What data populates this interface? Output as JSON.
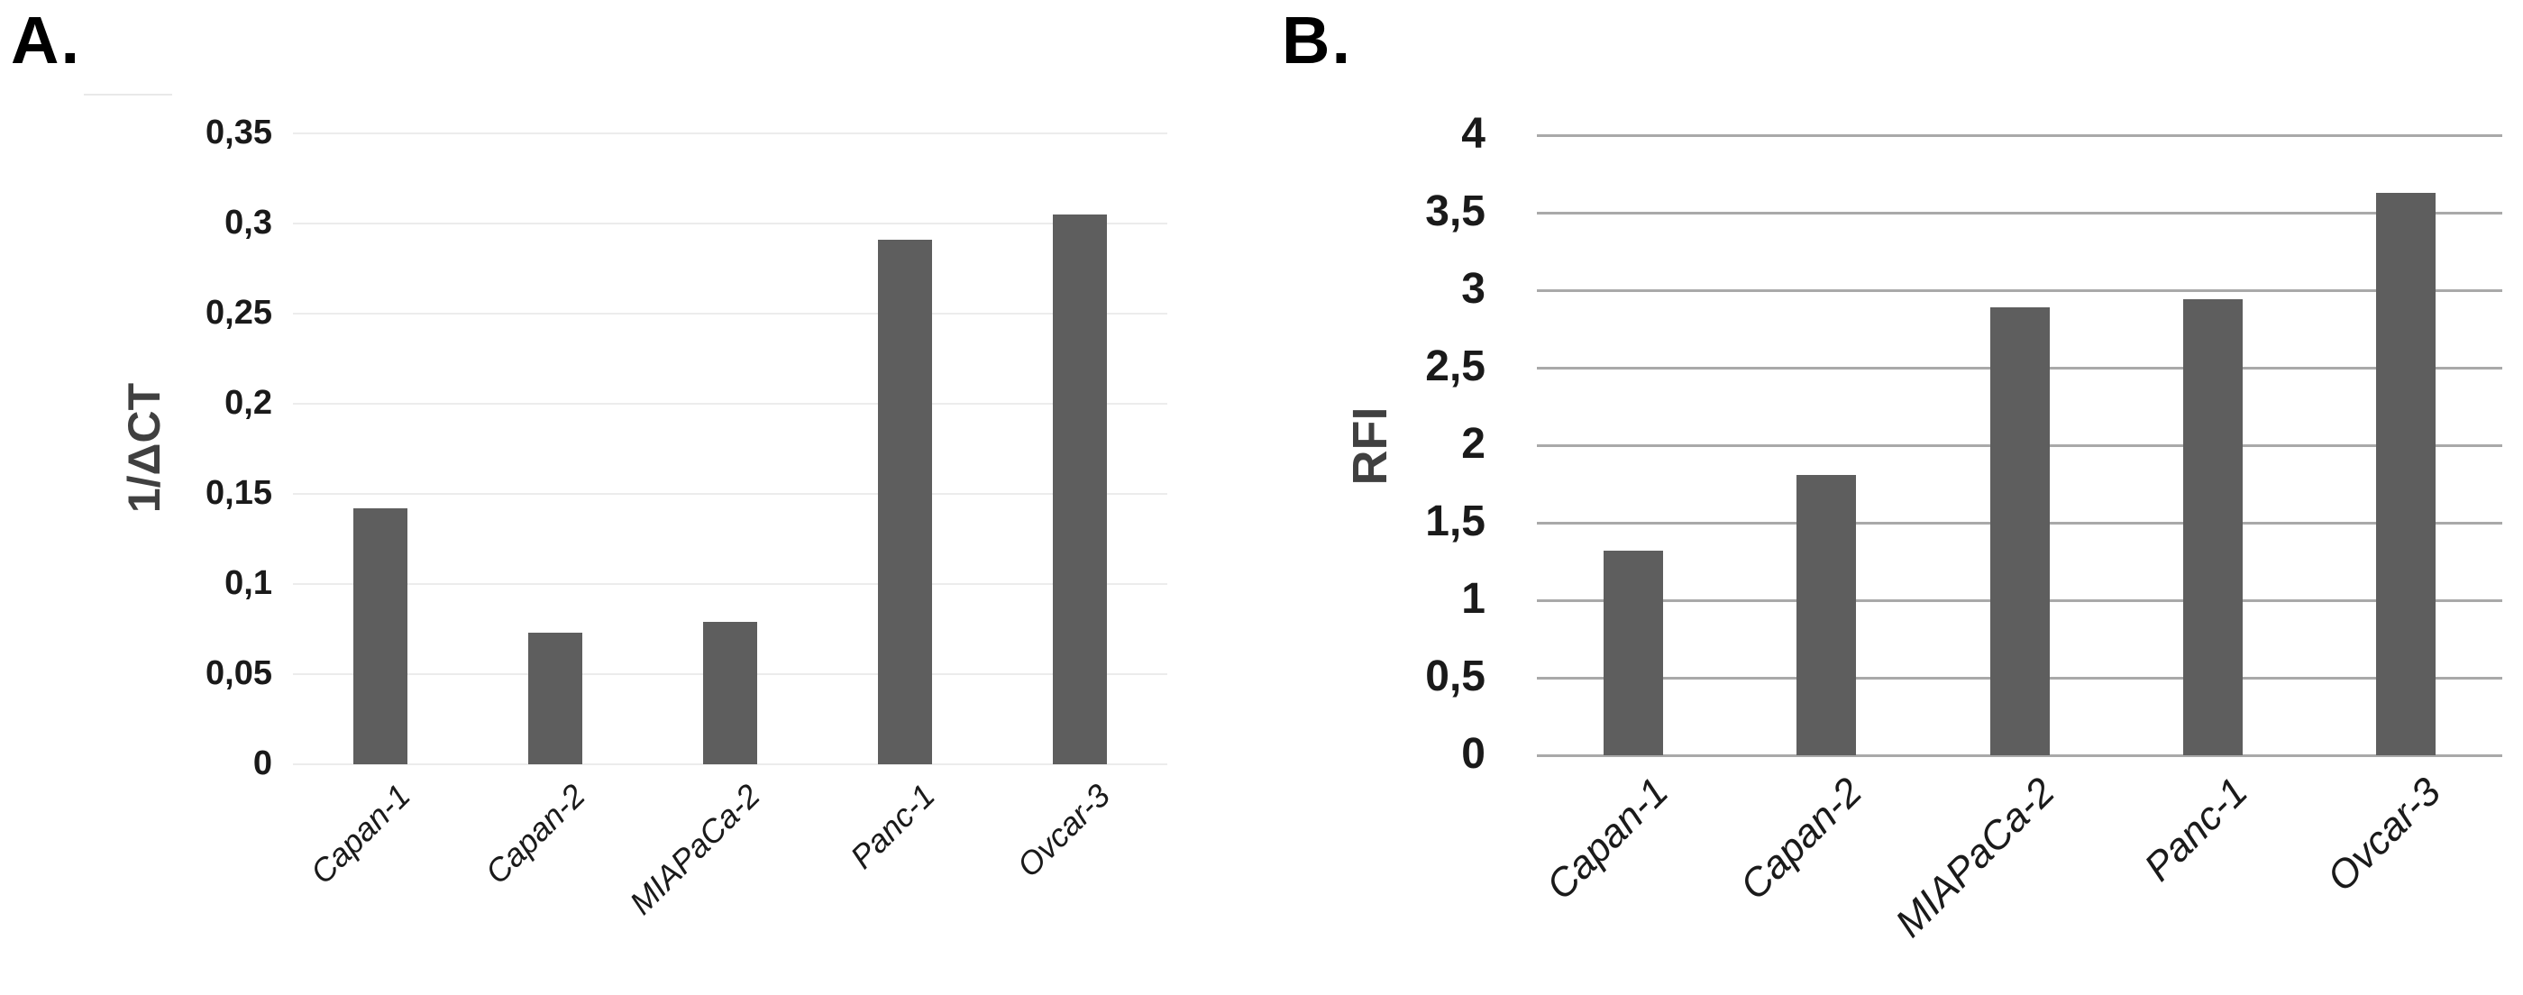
{
  "page": {
    "background": "#ffffff"
  },
  "chart_data": [
    {
      "type": "bar",
      "panel_letter": "A.",
      "title": "",
      "xlabel": "",
      "ylabel": "1/ΔCT",
      "categories": [
        "Capan-1",
        "Capan-2",
        "MIAPaCa-2",
        "Panc-1",
        "Ovcar-3"
      ],
      "values": [
        0.142,
        0.073,
        0.079,
        0.291,
        0.305
      ],
      "ylim": [
        0,
        0.35
      ],
      "ytick_step": 0.05,
      "ytick_labels": [
        "0,35",
        "0,3",
        "0,25",
        "0,2",
        "0,15",
        "0,1",
        "0,05",
        "0"
      ],
      "decimal_separator": ",",
      "grid": true,
      "legend": "none",
      "bar_color": "#5e5e5e",
      "gridline_color": "#ececec"
    },
    {
      "type": "bar",
      "panel_letter": "B.",
      "title": "",
      "xlabel": "",
      "ylabel": "RFI",
      "categories": [
        "Capan-1",
        "Capan-2",
        "MIAPaCa-2",
        "Panc-1",
        "Ovcar-3"
      ],
      "values": [
        1.32,
        1.81,
        2.89,
        2.94,
        3.63
      ],
      "ylim": [
        0,
        4
      ],
      "ytick_step": 0.5,
      "ytick_labels": [
        "4",
        "3,5",
        "3",
        "2,5",
        "2",
        "1,5",
        "1",
        "0,5",
        "0"
      ],
      "decimal_separator": ",",
      "grid": true,
      "legend": "none",
      "bar_color": "#5e5e5e",
      "gridline_color": "#a9a9a9"
    }
  ],
  "colors": {
    "bar": "#5e5e5e",
    "panel_a_gridline": "#ececec",
    "panel_b_gridline": "#a9a9a9",
    "tick_label": "#1a1a1a",
    "axis_title": "#404040",
    "category_label": "#1a1a1a",
    "panel_letter": "#000000",
    "artifact_line": "#e9e9e9"
  }
}
